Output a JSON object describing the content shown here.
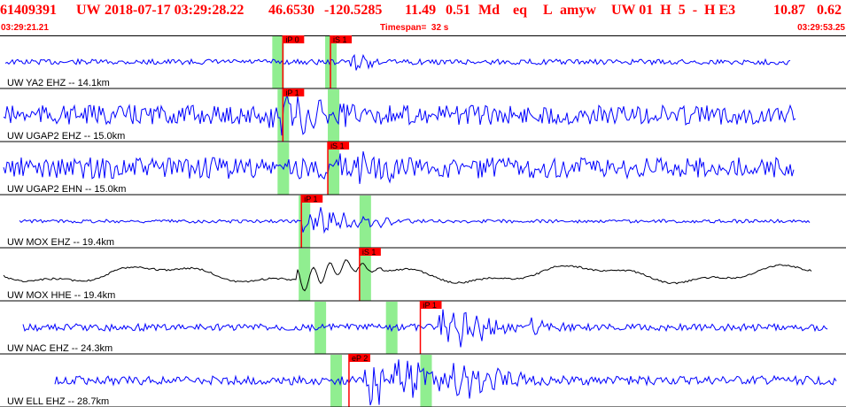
{
  "header": {
    "event_id": "61409391",
    "network": "UW",
    "datetime": "2018-07-17 03:29:28.22",
    "lat": "46.6530",
    "lon": "-120.5285",
    "depth": "11.49",
    "magnitude": "0.51",
    "mag_type": "Md",
    "event_type": "eq",
    "flag": "L",
    "author": "amyw",
    "version_info": "UW 01  H  5  -  H E3",
    "value_a": "10.87",
    "value_b": "0.62"
  },
  "subheader": {
    "start_time": "03:29:21.21",
    "timespan": "Timespan=  32 s",
    "end_time": "03:29:53.25"
  },
  "colors": {
    "header": "#ff0000",
    "trace": "#0000ff",
    "trace_alt": "#000000",
    "pick_window": "#90ee90",
    "pick_marker": "#ff0000",
    "separator": "#000000"
  },
  "traces": [
    {
      "label": "UW YA2 EHZ -- 14.1km",
      "color": "blue",
      "picks": [
        {
          "text": "iP 0",
          "t": 10.7
        },
        {
          "text": "iS 1",
          "t": 12.5
        }
      ],
      "green_times": [
        10.5,
        12.5
      ]
    },
    {
      "label": "UW UGAP2 EHZ -- 15.0km",
      "color": "blue",
      "picks": [
        {
          "text": "iP 1",
          "t": 10.7
        }
      ],
      "green_times": [
        10.7,
        12.6
      ]
    },
    {
      "label": "UW UGAP2 EHN -- 15.0km",
      "color": "blue",
      "picks": [
        {
          "text": "iS 1",
          "t": 12.4
        }
      ],
      "green_times": [
        10.7,
        12.6
      ]
    },
    {
      "label": "UW MOX EHZ -- 19.4km",
      "color": "blue",
      "picks": [
        {
          "text": "iP 1",
          "t": 11.4
        }
      ],
      "green_times": [
        11.5,
        13.8
      ]
    },
    {
      "label": "UW MOX HHE -- 19.4km",
      "color": "black",
      "picks": [
        {
          "text": "iS 1",
          "t": 13.6
        }
      ],
      "green_times": [
        11.5,
        13.8
      ]
    },
    {
      "label": "UW NAC EHZ -- 24.3km",
      "color": "blue",
      "picks": [
        {
          "text": "iP 1",
          "t": 15.9
        }
      ],
      "green_times": [
        12.1,
        14.8
      ]
    },
    {
      "label": "UW ELL EHZ -- 28.7km",
      "color": "blue",
      "picks": [
        {
          "text": "eP 2",
          "t": 13.2
        }
      ],
      "green_times": [
        12.7,
        16.1
      ]
    }
  ]
}
